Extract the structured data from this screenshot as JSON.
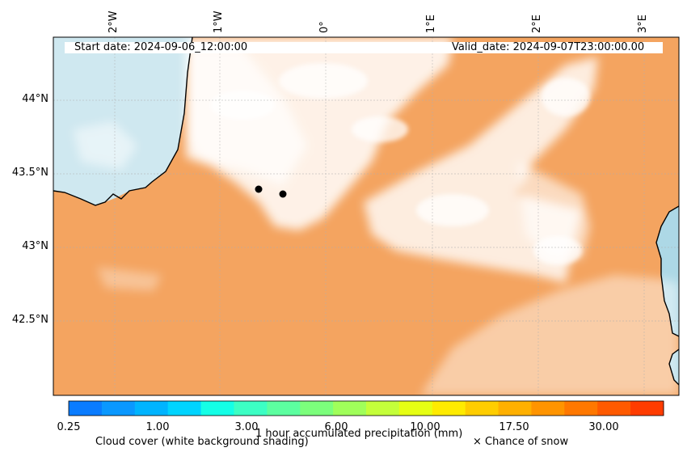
{
  "header": {
    "start_date": "Start date: 2024-09-06_12:00:00",
    "valid_date": "Valid_date: 2024-09-07T23:00:00.00"
  },
  "lon_labels": [
    "2°W",
    "1°W",
    "0°",
    "1°E",
    "2°E",
    "3°E"
  ],
  "lat_labels": [
    "44°N",
    "43.5°N",
    "43°N",
    "42.5°N"
  ],
  "colorbar": {
    "title": "1 hour accumulated precipitation (mm)",
    "ticks": [
      "0.25",
      "1.00",
      "3.00",
      "6.00",
      "10.00",
      "17.50",
      "30.00"
    ],
    "colors": [
      "#0a7cff",
      "#0a98ff",
      "#00b4ff",
      "#00d4ff",
      "#14ffe6",
      "#3cffc4",
      "#5cffa0",
      "#7cff7c",
      "#a0ff5a",
      "#c4ff3a",
      "#e6ff14",
      "#ffeb00",
      "#ffcd00",
      "#ffb000",
      "#ff9400",
      "#ff7800",
      "#ff5a00",
      "#ff3c00"
    ]
  },
  "legend": {
    "cloud_cover": "Cloud cover (white background shading)",
    "snow": "× Chance of snow"
  },
  "colors": {
    "land": "#f4a460",
    "sea": "#add8e6",
    "cloud": "#ffffff",
    "coast": "#000000"
  }
}
